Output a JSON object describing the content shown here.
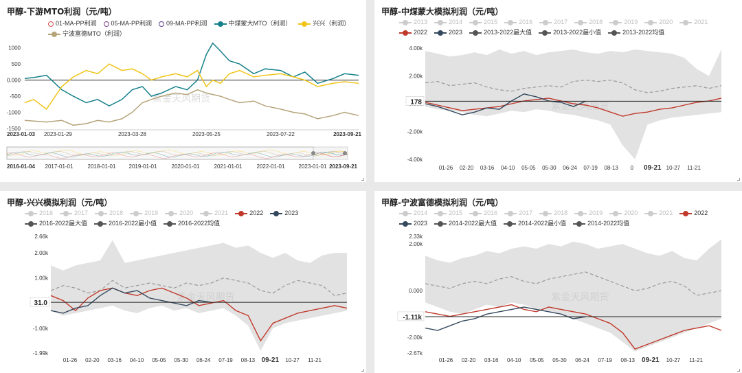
{
  "panels": [
    {
      "title": "甲醇-下游MTO利润（元/吨）",
      "legend": [
        {
          "label": "01-MA-PP利润",
          "color": "#d9534f",
          "style": "circle",
          "off": false
        },
        {
          "label": "05-MA-PP利润",
          "color": "#7b3a8a",
          "style": "circle",
          "off": false
        },
        {
          "label": "09-MA-PP利润",
          "color": "#5a3f86",
          "style": "circle",
          "off": false
        },
        {
          "label": "中煤蒙大MTO（利润）",
          "color": "#16808a",
          "style": "dot",
          "off": false
        },
        {
          "label": "兴兴（利润）",
          "color": "#f0c419",
          "style": "dot",
          "off": false
        },
        {
          "label": "宁波富德MTO（利润）",
          "color": "#b5a47a",
          "style": "dot",
          "off": false
        }
      ],
      "watermark": "紫金天风期货"
    },
    {
      "title": "甲醇-中煤蒙大模拟利润（元/吨）",
      "legend": [
        {
          "label": "2013",
          "off": true
        },
        {
          "label": "2014",
          "off": true
        },
        {
          "label": "2015",
          "off": true
        },
        {
          "label": "2016",
          "off": true
        },
        {
          "label": "2017",
          "off": true
        },
        {
          "label": "2018",
          "off": true
        },
        {
          "label": "2019",
          "off": true
        },
        {
          "label": "2020",
          "off": true
        },
        {
          "label": "2021",
          "off": true
        },
        {
          "label": "2022",
          "color": "#c0392b",
          "off": false
        },
        {
          "label": "2023",
          "color": "#34495e",
          "off": false
        },
        {
          "label": "2013-2022最大值",
          "color": "#555555",
          "off": false
        },
        {
          "label": "2013-2022最小值",
          "color": "#555555",
          "off": false
        },
        {
          "label": "2013-2022均值",
          "color": "#555555",
          "off": false
        }
      ],
      "watermark": "紫金天风期货"
    },
    {
      "title": "甲醇-兴兴模拟利润（元/吨）",
      "legend": [
        {
          "label": "2016",
          "off": true
        },
        {
          "label": "2017",
          "off": true
        },
        {
          "label": "2018",
          "off": true
        },
        {
          "label": "2019",
          "off": true
        },
        {
          "label": "2020",
          "off": true
        },
        {
          "label": "2021",
          "off": true
        },
        {
          "label": "2022",
          "color": "#c0392b",
          "off": false
        },
        {
          "label": "2023",
          "color": "#34495e",
          "off": false
        },
        {
          "label": "2016-2022最大值",
          "color": "#555555",
          "off": false
        },
        {
          "label": "2016-2022最小值",
          "color": "#555555",
          "off": false
        },
        {
          "label": "2016-2022均值",
          "color": "#555555",
          "off": false
        }
      ],
      "watermark": "紫金天风期货"
    },
    {
      "title": "甲醇-宁波富德模拟利润（元/吨）",
      "legend": [
        {
          "label": "2014",
          "off": true
        },
        {
          "label": "2015",
          "off": true
        },
        {
          "label": "2016",
          "off": true
        },
        {
          "label": "2017",
          "off": true
        },
        {
          "label": "2018",
          "off": true
        },
        {
          "label": "2019",
          "off": true
        },
        {
          "label": "2020",
          "off": true
        },
        {
          "label": "2021",
          "off": true
        },
        {
          "label": "2022",
          "color": "#c0392b",
          "off": false
        },
        {
          "label": "2023",
          "color": "#34495e",
          "off": false
        },
        {
          "label": "2014-2022最大值",
          "color": "#555555",
          "off": false
        },
        {
          "label": "2014-2022最小值",
          "color": "#555555",
          "off": false
        },
        {
          "label": "2014-2022均值",
          "color": "#555555",
          "off": false
        }
      ],
      "watermark": "紫金天风期货"
    }
  ],
  "chart_data": [
    {
      "type": "line",
      "title": "甲醇-下游MTO利润（元/吨）",
      "ylim": [
        -1500,
        1250
      ],
      "yticks": [
        1000,
        500,
        0,
        -500,
        -1000,
        -1500
      ],
      "ytick_labels": [
        "1000",
        "500",
        "0.000",
        "-500",
        "-1000",
        "-1500"
      ],
      "x_range": [
        "2023-01-03",
        "2023-09-21"
      ],
      "xtick_labels": [
        "2023-01-03",
        "2023-01-29",
        "2023-03-28",
        "2023-05-25",
        "2023-07-22",
        "2023-09-21"
      ],
      "xtick_bold": [
        "2023-01-03",
        "2023-09-21"
      ],
      "navigator_labels": [
        "2016-01-04",
        "2017-01-01",
        "2018-01-01",
        "2019-01-01",
        "2020-01-01",
        "2021-01-01",
        "2022-01-01",
        "2023-01-01",
        "2023-09-21"
      ],
      "navigator_bold": [
        "2016-01-04",
        "2023-09-21"
      ],
      "series": [
        {
          "name": "中煤蒙大MTO（利润）",
          "color": "#16808a",
          "x": [
            "2023-01-03",
            "2023-01-10",
            "2023-01-20",
            "2023-02-01",
            "2023-02-10",
            "2023-02-20",
            "2023-03-01",
            "2023-03-10",
            "2023-03-20",
            "2023-03-28",
            "2023-04-05",
            "2023-04-12",
            "2023-04-20",
            "2023-05-01",
            "2023-05-10",
            "2023-05-18",
            "2023-05-25",
            "2023-05-30",
            "2023-06-05",
            "2023-06-12",
            "2023-06-20",
            "2023-07-01",
            "2023-07-10",
            "2023-07-22",
            "2023-08-01",
            "2023-08-10",
            "2023-08-20",
            "2023-09-01",
            "2023-09-10",
            "2023-09-21"
          ],
          "y": [
            50,
            80,
            150,
            -300,
            -500,
            -700,
            -600,
            -800,
            -600,
            -300,
            -200,
            -500,
            -400,
            -200,
            -300,
            0,
            800,
            1150,
            900,
            600,
            500,
            200,
            350,
            300,
            100,
            250,
            -100,
            50,
            200,
            150
          ]
        },
        {
          "name": "兴兴（利润）",
          "color": "#f0c419",
          "x": [
            "2023-01-03",
            "2023-01-10",
            "2023-01-20",
            "2023-02-01",
            "2023-02-10",
            "2023-02-20",
            "2023-03-01",
            "2023-03-10",
            "2023-03-20",
            "2023-03-28",
            "2023-04-05",
            "2023-04-12",
            "2023-04-20",
            "2023-05-01",
            "2023-05-10",
            "2023-05-18",
            "2023-05-25",
            "2023-05-30",
            "2023-06-05",
            "2023-06-12",
            "2023-06-20",
            "2023-07-01",
            "2023-07-10",
            "2023-07-22",
            "2023-08-01",
            "2023-08-10",
            "2023-08-20",
            "2023-09-01",
            "2023-09-10",
            "2023-09-21"
          ],
          "y": [
            -700,
            -600,
            -900,
            -200,
            100,
            300,
            200,
            500,
            300,
            350,
            200,
            0,
            100,
            200,
            100,
            300,
            -200,
            0,
            -100,
            200,
            300,
            100,
            150,
            200,
            100,
            0,
            -200,
            -100,
            -50,
            -100
          ]
        },
        {
          "name": "宁波富德MTO（利润）",
          "color": "#b5a47a",
          "x": [
            "2023-01-03",
            "2023-01-20",
            "2023-02-01",
            "2023-02-10",
            "2023-02-20",
            "2023-03-01",
            "2023-03-10",
            "2023-03-20",
            "2023-03-28",
            "2023-04-05",
            "2023-04-12",
            "2023-04-20",
            "2023-05-01",
            "2023-05-10",
            "2023-05-18",
            "2023-05-25",
            "2023-06-05",
            "2023-06-12",
            "2023-06-20",
            "2023-07-01",
            "2023-07-10",
            "2023-07-22",
            "2023-08-01",
            "2023-08-10",
            "2023-08-20",
            "2023-09-01",
            "2023-09-10",
            "2023-09-21"
          ],
          "y": [
            -1250,
            -1300,
            -1250,
            -1400,
            -1350,
            -1250,
            -1300,
            -1200,
            -1000,
            -700,
            -600,
            -500,
            -400,
            -450,
            -300,
            -400,
            -500,
            -600,
            -700,
            -650,
            -800,
            -900,
            -1000,
            -1050,
            -1200,
            -1100,
            -1000,
            -1100
          ]
        }
      ]
    },
    {
      "type": "line",
      "title": "甲醇-中煤蒙大模拟利润（元/吨）",
      "ylim": [
        -4000,
        4000
      ],
      "ytick_labels": [
        "4.00k",
        "2.00k",
        "0.000",
        "-2.00k",
        "-4.00k"
      ],
      "yticks": [
        4000,
        2000,
        0,
        -2000,
        -4000
      ],
      "current_value_label": "178",
      "current_value": 178,
      "xtick_labels": [
        "01-26",
        "02-20",
        "03-16",
        "04-10",
        "05-05",
        "05-30",
        "06-24",
        "07-19",
        "08-13",
        "0",
        "09-21",
        "10-27",
        "11-21"
      ],
      "xtick_bold": [
        "09-21"
      ],
      "band_max": [
        3800,
        3600,
        3400,
        3500,
        3700,
        3500,
        3900,
        3600,
        3800,
        3500,
        3700,
        3800,
        3900,
        3700,
        3600,
        3800,
        3700,
        3900,
        3800,
        3700,
        3600,
        3300,
        2500,
        2000,
        3900
      ],
      "band_min": [
        -200,
        -400,
        -500,
        -600,
        -800,
        -900,
        -700,
        -500,
        -600,
        -400,
        -500,
        -700,
        -800,
        -1000,
        -1200,
        -1500,
        -3000,
        -4000,
        -1500,
        -1200,
        -1000,
        -900,
        -800,
        -700,
        -600
      ],
      "mean": [
        1500,
        1600,
        1300,
        1400,
        1500,
        1200,
        1000,
        900,
        1100,
        1200,
        1300,
        1200,
        1600,
        1700,
        1600,
        1700,
        1500,
        1000,
        800,
        900,
        1100,
        1200,
        1300,
        1100,
        1300
      ],
      "series": [
        {
          "name": "2022",
          "color": "#c0392b",
          "y": [
            100,
            -100,
            -300,
            -500,
            -400,
            -300,
            -200,
            0,
            200,
            300,
            400,
            200,
            0,
            -100,
            -300,
            -600,
            -900,
            -700,
            -600,
            -400,
            -300,
            -100,
            100,
            200,
            400
          ]
        },
        {
          "name": "2023",
          "color": "#34495e",
          "y": [
            0,
            -200,
            -500,
            -800,
            -600,
            -300,
            -400,
            200,
            700,
            500,
            200,
            100,
            -200,
            178
          ]
        }
      ]
    },
    {
      "type": "line",
      "title": "甲醇-兴兴模拟利润（元/吨）",
      "ylim": [
        -1990,
        2660
      ],
      "yticks": [
        2660,
        2000,
        1000,
        31,
        -1000,
        -1990
      ],
      "ytick_labels": [
        "2.66k",
        "2.00k",
        "1.00k",
        "31.0",
        "-1.00k",
        "-1.99k"
      ],
      "current_value_label": "31.0",
      "current_value": 31,
      "xtick_labels": [
        "01-26",
        "02-20",
        "03-16",
        "04-10",
        "05-05",
        "05-30",
        "06-24",
        "07-19",
        "08-13",
        "09-21",
        "10-27",
        "11-21"
      ],
      "xtick_bold": [
        "09-21"
      ],
      "band_max": [
        1500,
        1300,
        1500,
        1600,
        1700,
        2500,
        1600,
        1700,
        1800,
        1900,
        2000,
        2100,
        2200,
        2300,
        2400,
        2200,
        2300,
        2000,
        1800,
        2000,
        1700,
        1600,
        1900,
        2000,
        2000
      ],
      "band_min": [
        -300,
        -500,
        -400,
        -300,
        -200,
        -100,
        -300,
        -400,
        -200,
        -100,
        -300,
        -200,
        -400,
        -300,
        -200,
        -500,
        -900,
        -1900,
        -1000,
        -800,
        -700,
        -600,
        -500,
        -400,
        -300
      ],
      "mean": [
        500,
        700,
        600,
        400,
        500,
        900,
        600,
        700,
        800,
        700,
        600,
        800,
        700,
        800,
        1000,
        900,
        800,
        500,
        400,
        700,
        900,
        800,
        700,
        300,
        400
      ],
      "series": [
        {
          "name": "2022",
          "color": "#c0392b",
          "y": [
            300,
            100,
            -300,
            200,
            500,
            600,
            400,
            300,
            500,
            600,
            400,
            200,
            -100,
            0,
            100,
            -300,
            -500,
            -1500,
            -800,
            -600,
            -400,
            -300,
            -200,
            -100,
            -200
          ]
        },
        {
          "name": "2023",
          "color": "#34495e",
          "y": [
            -300,
            -400,
            -200,
            -100,
            300,
            600,
            400,
            500,
            200,
            100,
            0,
            -100,
            100,
            31
          ]
        }
      ]
    },
    {
      "type": "line",
      "title": "甲醇-宁波富德模拟利润（元/吨）",
      "ylim": [
        -2670,
        2330
      ],
      "yticks": [
        2330,
        2000,
        0,
        -1110,
        -2000,
        -2670
      ],
      "ytick_labels": [
        "2.33k",
        "2.00k",
        "0.000",
        "-1.11k",
        "-2.00k",
        "-2.67k"
      ],
      "current_value_label": "-1.11k",
      "current_value": -1110,
      "xtick_labels": [
        "01-26",
        "02-20",
        "03-16",
        "04-10",
        "05-05",
        "05-30",
        "06-24",
        "07-19",
        "08-13",
        "09-21",
        "10-27",
        "11-21"
      ],
      "xtick_bold": [
        "09-21"
      ],
      "band_max": [
        1500,
        1300,
        1200,
        1400,
        1500,
        1700,
        1600,
        1800,
        1900,
        1800,
        2000,
        1900,
        2100,
        2000,
        1800,
        1900,
        2000,
        1800,
        1600,
        1500,
        1700,
        1400,
        1300,
        1800,
        2200
      ],
      "band_min": [
        -500,
        -700,
        -900,
        -1000,
        -800,
        -600,
        -700,
        -500,
        -600,
        -800,
        -900,
        -1000,
        -1200,
        -1400,
        -1600,
        -1800,
        -2200,
        -2600,
        -2400,
        -2200,
        -2000,
        -1800,
        -1600,
        -1400,
        -1200
      ],
      "mean": [
        300,
        200,
        100,
        300,
        400,
        300,
        500,
        600,
        400,
        300,
        500,
        600,
        700,
        800,
        600,
        400,
        200,
        0,
        100,
        300,
        400,
        200,
        -200,
        -100,
        0
      ],
      "series": [
        {
          "name": "2022",
          "color": "#c0392b",
          "y": [
            -900,
            -1000,
            -1100,
            -1000,
            -900,
            -800,
            -700,
            -600,
            -800,
            -900,
            -700,
            -800,
            -900,
            -1000,
            -1200,
            -1400,
            -1800,
            -2500,
            -2300,
            -2100,
            -1900,
            -1700,
            -1600,
            -1500,
            -1700
          ]
        },
        {
          "name": "2023",
          "color": "#34495e",
          "y": [
            -1600,
            -1700,
            -1500,
            -1300,
            -1200,
            -1000,
            -900,
            -800,
            -700,
            -800,
            -900,
            -1000,
            -1200,
            -1110
          ]
        }
      ]
    }
  ]
}
